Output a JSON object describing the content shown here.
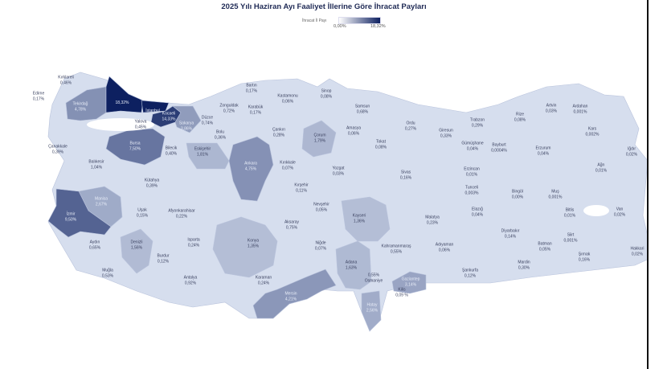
{
  "title": "2025 Yılı Haziran Ayı Faaliyet İllerine Göre İhracat Payları",
  "legend": {
    "label": "İhracat İl Payı",
    "min": "0,00%",
    "max": "18,32%",
    "min_color": "#ffffff",
    "max_color": "#0d2060"
  },
  "provinces": [
    {
      "name": "Kırklareli",
      "value": "0,46%"
    },
    {
      "name": "Edirne",
      "value": "0,17%"
    },
    {
      "name": "Tekirdağ",
      "value": "4,78%"
    },
    {
      "name": "İstanbul",
      "value": "18,32%"
    },
    {
      "name": "Kocaeli",
      "value": "14,33%"
    },
    {
      "name": "Yalova",
      "value": "0,45%"
    },
    {
      "name": "Sakarya",
      "value": "3,86%"
    },
    {
      "name": "Düzce",
      "value": "0,74%"
    },
    {
      "name": "Zonguldak",
      "value": "0,72%"
    },
    {
      "name": "Bartın",
      "value": "0,17%"
    },
    {
      "name": "Karabük",
      "value": "0,17%"
    },
    {
      "name": "Kastamonu",
      "value": "0,06%"
    },
    {
      "name": "Sinop",
      "value": "0,08%"
    },
    {
      "name": "Samsun",
      "value": "0,68%"
    },
    {
      "name": "Amasya",
      "value": "0,06%"
    },
    {
      "name": "Ordu",
      "value": "0,27%"
    },
    {
      "name": "Tokat",
      "value": "0,08%"
    },
    {
      "name": "Çorum",
      "value": "1,79%"
    },
    {
      "name": "Çankırı",
      "value": "0,28%"
    },
    {
      "name": "Bolu",
      "value": "0,36%"
    },
    {
      "name": "Kırıkkale",
      "value": "0,07%"
    },
    {
      "name": "Ankara",
      "value": "4,75%"
    },
    {
      "name": "Eskişehir",
      "value": "1,81%"
    },
    {
      "name": "Bilecik",
      "value": "0,40%"
    },
    {
      "name": "Bursa",
      "value": "7,50%"
    },
    {
      "name": "Balıkesir",
      "value": "1,04%"
    },
    {
      "name": "Çanakkale",
      "value": "0,39%"
    },
    {
      "name": "Kütahya",
      "value": "0,39%"
    },
    {
      "name": "Manisa",
      "value": "2,67%"
    },
    {
      "name": "İzmir",
      "value": "9,50%"
    },
    {
      "name": "Uşak",
      "value": "0,15%"
    },
    {
      "name": "Afyonkarahisar",
      "value": "0,22%"
    },
    {
      "name": "Aydın",
      "value": "0,65%"
    },
    {
      "name": "Denizli",
      "value": "1,56%"
    },
    {
      "name": "Isparta",
      "value": "0,24%"
    },
    {
      "name": "Burdur",
      "value": "0,12%"
    },
    {
      "name": "Muğla",
      "value": "0,53%"
    },
    {
      "name": "Antalya",
      "value": "0,92%"
    },
    {
      "name": "Konya",
      "value": "1,35%"
    },
    {
      "name": "Karaman",
      "value": "0,24%"
    },
    {
      "name": "Mersin",
      "value": "4,21%"
    },
    {
      "name": "Aksaray",
      "value": "0,75%"
    },
    {
      "name": "Niğde",
      "value": "0,07%"
    },
    {
      "name": "Nevşehir",
      "value": "0,05%"
    },
    {
      "name": "Kırşehir",
      "value": "0,11%"
    },
    {
      "name": "Yozgat",
      "value": "0,03%"
    },
    {
      "name": "Sivas",
      "value": "0,16%"
    },
    {
      "name": "Kayseri",
      "value": "1,36%"
    },
    {
      "name": "Adana",
      "value": "1,63%"
    },
    {
      "name": "Osmaniye",
      "value": "0,55%"
    },
    {
      "name": "Kahramanmaraş",
      "value": "0,55%"
    },
    {
      "name": "Gaziantep",
      "value": "3,14%"
    },
    {
      "name": "Kilis",
      "value": "0,09 %"
    },
    {
      "name": "Hatay",
      "value": "2,56%"
    },
    {
      "name": "Malatya",
      "value": "0,23%"
    },
    {
      "name": "Adıyaman",
      "value": "0,06%"
    },
    {
      "name": "Şanlıurfa",
      "value": "0,12%"
    },
    {
      "name": "Mardin",
      "value": "0,30%"
    },
    {
      "name": "Diyarbakır",
      "value": "0,14%"
    },
    {
      "name": "Batman",
      "value": "0,05%"
    },
    {
      "name": "Siirt",
      "value": "0,001%"
    },
    {
      "name": "Şırnak",
      "value": "0,16%"
    },
    {
      "name": "Hakkari",
      "value": "0,02%"
    },
    {
      "name": "Van",
      "value": "0,02%"
    },
    {
      "name": "Bitlis",
      "value": "0,01%"
    },
    {
      "name": "Muş",
      "value": "0,001%"
    },
    {
      "name": "Bingöl",
      "value": "0,00%"
    },
    {
      "name": "Tunceli",
      "value": "0,003%"
    },
    {
      "name": "Elazığ",
      "value": "0,04%"
    },
    {
      "name": "Erzincan",
      "value": "0,01%"
    },
    {
      "name": "Erzurum",
      "value": "0,04%"
    },
    {
      "name": "Bayburt",
      "value": "0,0004%"
    },
    {
      "name": "Gümüşhane",
      "value": "0,04%"
    },
    {
      "name": "Giresun",
      "value": "0,33%"
    },
    {
      "name": "Trabzon",
      "value": "0,29%"
    },
    {
      "name": "Rize",
      "value": "0,08%"
    },
    {
      "name": "Artvin",
      "value": "0,03%"
    },
    {
      "name": "Ardahan",
      "value": "0,001%"
    },
    {
      "name": "Kars",
      "value": "0,002%"
    },
    {
      "name": "Iğdır",
      "value": "0,02%"
    },
    {
      "name": "Ağrı",
      "value": "0,01%"
    }
  ]
}
